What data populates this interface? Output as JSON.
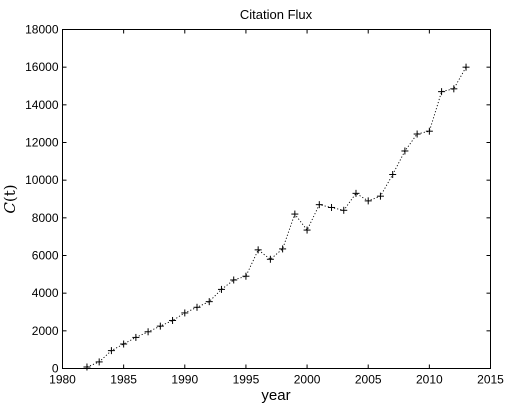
{
  "chart_data": {
    "type": "line",
    "title": "Citation Flux",
    "xlabel": "year",
    "ylabel": "C(t)",
    "xlim": [
      1980,
      2015
    ],
    "ylim": [
      0,
      18000
    ],
    "xticks": [
      1980,
      1985,
      1990,
      1995,
      2000,
      2005,
      2010,
      2015
    ],
    "yticks": [
      0,
      2000,
      4000,
      6000,
      8000,
      10000,
      12000,
      14000,
      16000,
      18000
    ],
    "grid": false,
    "line_style": "dotted",
    "marker": "+",
    "series": [
      {
        "x": [
          1982,
          1983,
          1984,
          1985,
          1986,
          1987,
          1988,
          1989,
          1990,
          1991,
          1992,
          1993,
          1994,
          1995,
          1996,
          1997,
          1998,
          1999,
          2000,
          2001,
          2002,
          2003,
          2004,
          2005,
          2006,
          2007,
          2008,
          2009,
          2010,
          2011,
          2012,
          2013
        ],
        "y": [
          80,
          350,
          950,
          1300,
          1650,
          1950,
          2250,
          2550,
          2950,
          3250,
          3550,
          4200,
          4700,
          4900,
          6300,
          5800,
          6350,
          8200,
          7350,
          8700,
          8550,
          8400,
          9300,
          8900,
          9150,
          10300,
          11550,
          12450,
          12600,
          14700,
          14850,
          16000
        ]
      }
    ]
  }
}
